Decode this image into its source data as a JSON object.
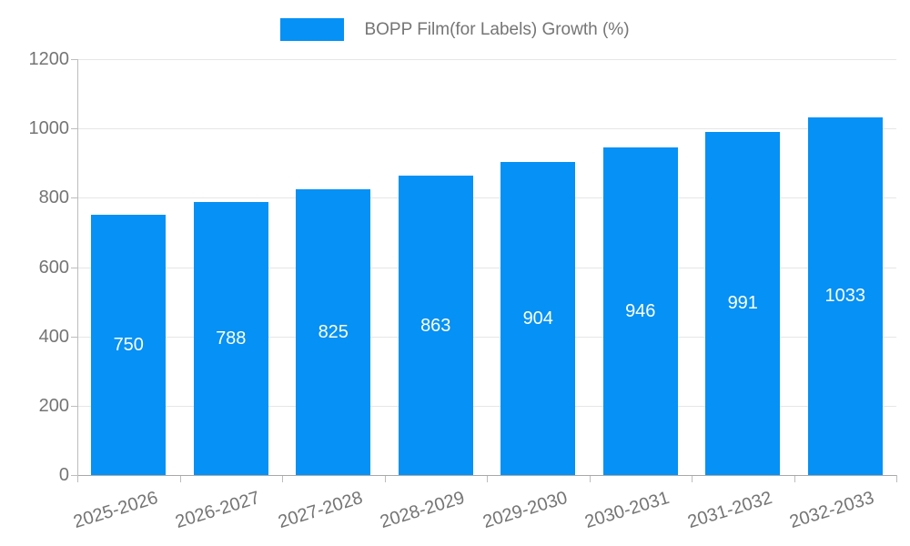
{
  "chart_data": {
    "type": "bar",
    "title": "",
    "legend_label": "BOPP Film(for Labels) Growth (%)",
    "legend_position": "top",
    "categories": [
      "2025-2026",
      "2026-2027",
      "2027-2028",
      "2028-2029",
      "2029-2030",
      "2030-2031",
      "2031-2032",
      "2032-2033"
    ],
    "values": [
      750,
      788,
      825,
      863,
      904,
      946,
      991,
      1033
    ],
    "xlabel": "",
    "ylabel": "",
    "ylim": [
      0,
      1200
    ],
    "ytick_step": 200,
    "yticks": [
      0,
      200,
      400,
      600,
      800,
      1000,
      1200
    ],
    "grid": "horizontal",
    "bar_labels_inside": true,
    "colors": {
      "bar": "#0591f5",
      "axis_text": "#757575",
      "bar_label_text": "#ffffff",
      "gridline": "#e6e6e6",
      "axis_line": "#a8a8a8",
      "background": "#ffffff"
    }
  }
}
